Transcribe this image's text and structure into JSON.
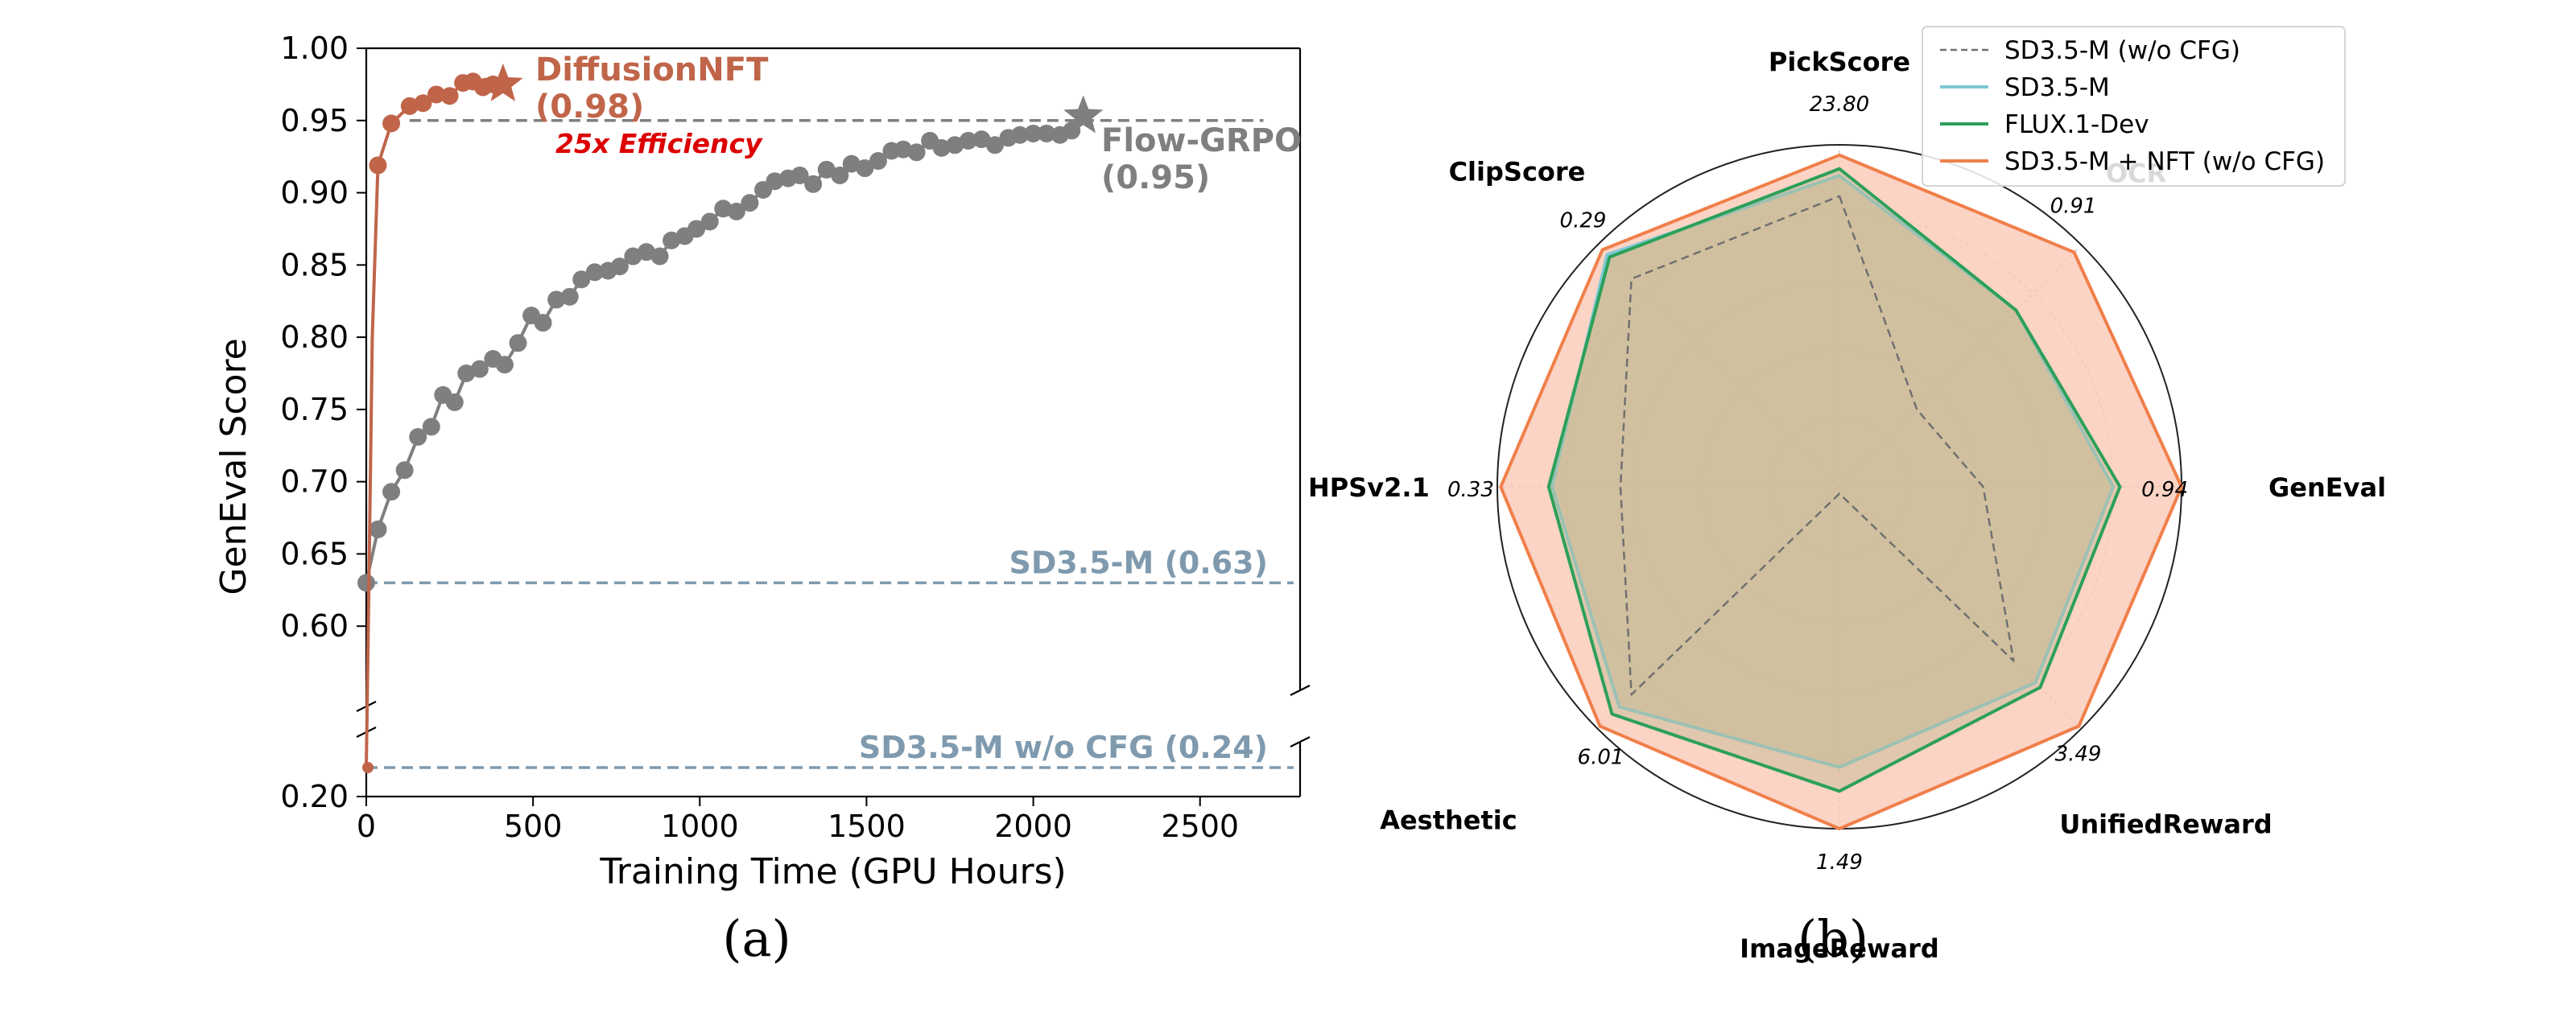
{
  "panel_a": {
    "caption": "(a)",
    "chart_data": {
      "type": "line",
      "xlabel": "Training Time (GPU Hours)",
      "ylabel": "GenEval Score",
      "xlim": [
        0,
        2800
      ],
      "ylim_upper": [
        0.55,
        1.0
      ],
      "ylim_lower": [
        0.2,
        0.28
      ],
      "x_ticks": [
        "0",
        "500",
        "1000",
        "1500",
        "2000",
        "2500"
      ],
      "y_ticks_upper": [
        "0.60",
        "0.65",
        "0.70",
        "0.75",
        "0.80",
        "0.85",
        "0.90",
        "0.95",
        "1.00"
      ],
      "y_ticks_lower": [
        "0.20"
      ],
      "series": [
        {
          "name": "DiffusionNFT",
          "color": "#c0654a",
          "x": [
            0,
            8,
            18,
            35,
            75,
            130,
            170,
            210,
            250,
            290,
            320,
            350,
            380,
            410
          ],
          "y": [
            0.24,
            0.63,
            0.8,
            0.919,
            0.948,
            0.96,
            0.962,
            0.968,
            0.967,
            0.976,
            0.977,
            0.973,
            0.975,
            0.975
          ],
          "endpoint_x": 410,
          "endpoint_y": 0.975,
          "label_name": "DiffusionNFT",
          "label_value": "(0.98)"
        },
        {
          "name": "Flow-GRPO",
          "color": "#7f7f7f",
          "x": [
            0,
            35,
            75,
            115,
            155,
            195,
            230,
            265,
            300,
            340,
            380,
            415,
            455,
            495,
            530,
            570,
            610,
            645,
            685,
            725,
            760,
            800,
            840,
            880,
            915,
            955,
            990,
            1030,
            1070,
            1110,
            1150,
            1190,
            1225,
            1265,
            1300,
            1340,
            1380,
            1420,
            1455,
            1495,
            1535,
            1575,
            1610,
            1650,
            1690,
            1725,
            1765,
            1805,
            1845,
            1885,
            1925,
            1960,
            2000,
            2040,
            2080,
            2115
          ],
          "y": [
            0.63,
            0.667,
            0.693,
            0.708,
            0.731,
            0.738,
            0.76,
            0.755,
            0.775,
            0.778,
            0.785,
            0.781,
            0.796,
            0.815,
            0.81,
            0.826,
            0.828,
            0.84,
            0.845,
            0.846,
            0.849,
            0.856,
            0.859,
            0.856,
            0.867,
            0.87,
            0.875,
            0.88,
            0.889,
            0.887,
            0.893,
            0.902,
            0.908,
            0.91,
            0.912,
            0.906,
            0.916,
            0.912,
            0.92,
            0.917,
            0.922,
            0.929,
            0.93,
            0.928,
            0.936,
            0.931,
            0.933,
            0.936,
            0.937,
            0.933,
            0.938,
            0.94,
            0.941,
            0.941,
            0.94,
            0.943
          ],
          "endpoint_x": 2150,
          "endpoint_y": 0.953,
          "label_name": "Flow-GRPO",
          "label_value": "(0.95)"
        }
      ],
      "reference_lines": [
        {
          "label": "SD3.5-M (0.63)",
          "y": 0.63,
          "color": "#7f9aae",
          "axis": "upper"
        },
        {
          "label": "SD3.5-M w/o CFG (0.24)",
          "y": 0.24,
          "color": "#7f9aae",
          "axis": "lower"
        },
        {
          "label": "",
          "y": 0.95,
          "color": "#7f7f7f",
          "axis": "upper"
        }
      ],
      "annotations": [
        {
          "text": "25x Efficiency",
          "color": "#dd0000"
        }
      ]
    }
  },
  "panel_b": {
    "caption": "(b)",
    "chart_data": {
      "type": "radar",
      "axes": [
        "PickScore",
        "OCR",
        "GenEval",
        "UnifiedReward",
        "ImageReward",
        "Aesthetic",
        "HPSv2.1",
        "ClipScore"
      ],
      "axis_max_labels": [
        "23.80",
        "0.91",
        "0.94",
        "3.49",
        "1.49",
        "6.01",
        "0.33",
        "0.29"
      ],
      "rings": 5,
      "series": [
        {
          "name": "SD3.5-M (w/o CFG)",
          "color": "#707070",
          "style": "dashed",
          "fill": "none",
          "values": [
            0.85,
            0.32,
            0.42,
            0.72,
            0.02,
            0.86,
            0.64,
            0.86
          ]
        },
        {
          "name": "SD3.5-M",
          "color": "#7ec8d4",
          "style": "solid",
          "fill": "#bfb78f",
          "values": [
            0.91,
            0.73,
            0.8,
            0.81,
            0.82,
            0.91,
            0.84,
            0.96
          ]
        },
        {
          "name": "FLUX.1-Dev",
          "color": "#2ca05a",
          "style": "solid",
          "fill": "#bfb78f",
          "values": [
            0.93,
            0.73,
            0.82,
            0.83,
            0.89,
            0.94,
            0.85,
            0.95
          ]
        },
        {
          "name": "SD3.5-M + NFT (w/o CFG)",
          "color": "#f07f4a",
          "style": "solid",
          "fill": "#f9c6b3",
          "values": [
            0.97,
            0.97,
            1.0,
            0.99,
            1.0,
            0.99,
            0.99,
            0.98
          ]
        }
      ]
    }
  }
}
